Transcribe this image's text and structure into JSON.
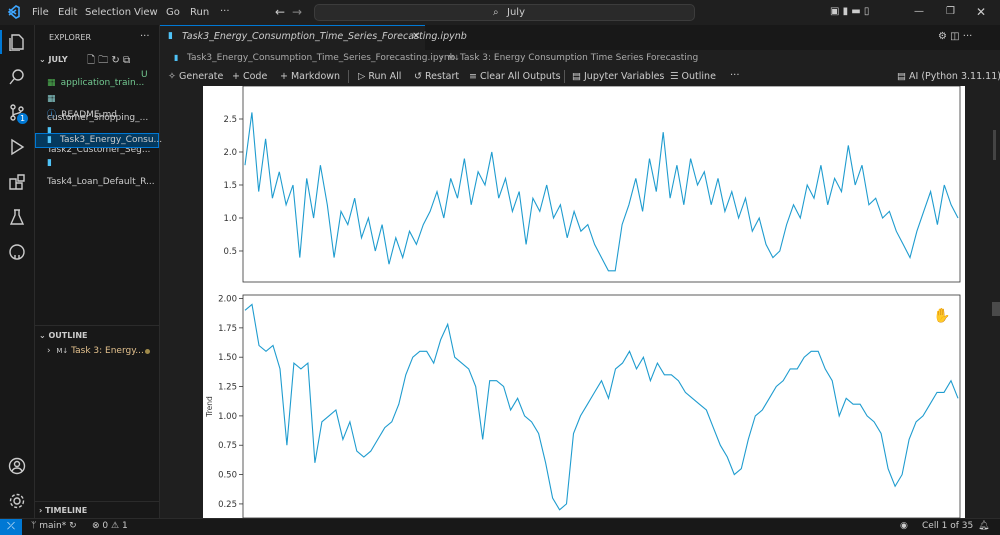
{
  "menu": [
    "File",
    "Edit",
    "Selection",
    "View",
    "Go",
    "Run",
    "···"
  ],
  "search": "July",
  "explorer": {
    "title": "EXPLORER",
    "folder": "JULY",
    "files": [
      {
        "name": "application_train...",
        "status": "U"
      },
      {
        "name": "customer_shopping_..."
      },
      {
        "name": "README.md"
      },
      {
        "name": "Task2_Customer_Seg..."
      },
      {
        "name": "Task3_Energy_Consu..."
      },
      {
        "name": "Task4_Loan_Default_R..."
      }
    ]
  },
  "source_control_badge": "1",
  "outline": {
    "title": "OUTLINE",
    "badge": "M↓",
    "item": "Task 3: Energy..."
  },
  "timeline": "TIMELINE",
  "tab": "Task3_Energy_Consumption_Time_Series_Forecasting.ipynb",
  "breadcrumb": [
    "Task3_Energy_Consumption_Time_Series_Forecasting.ipynb",
    "M↓",
    "Task 3: Energy Consumption Time Series Forecasting"
  ],
  "toolbar": [
    "Generate",
    "Code",
    "Markdown",
    "Run All",
    "Restart",
    "Clear All Outputs",
    "Jupyter Variables",
    "Outline"
  ],
  "kernel": "AI (Python 3.11.11)",
  "status": {
    "branch": "main*",
    "errors": "0",
    "warnings": "1",
    "cell": "Cell 1 of 35"
  },
  "chart_data": [
    {
      "type": "line",
      "color": "#1f9ccf",
      "values": [
        1.8,
        2.6,
        1.4,
        2.2,
        1.3,
        1.7,
        1.2,
        1.5,
        0.4,
        1.6,
        1.0,
        1.8,
        1.2,
        0.4,
        1.1,
        0.9,
        1.3,
        0.7,
        1.0,
        0.5,
        0.9,
        0.3,
        0.7,
        0.4,
        0.8,
        0.6,
        0.9,
        1.1,
        1.4,
        1.0,
        1.6,
        1.3,
        1.9,
        1.2,
        1.7,
        1.5,
        2.0,
        1.3,
        1.6,
        1.1,
        1.4,
        0.6,
        1.3,
        1.1,
        1.5,
        1.0,
        1.2,
        0.7,
        1.1,
        0.8,
        0.9,
        0.6,
        0.4,
        0.2,
        0.2,
        0.9,
        1.2,
        1.6,
        1.1,
        1.9,
        1.4,
        2.3,
        1.3,
        1.8,
        1.2,
        1.9,
        1.5,
        1.7,
        1.2,
        1.6,
        1.1,
        1.4,
        1.0,
        1.3,
        0.8,
        1.0,
        0.6,
        0.4,
        0.5,
        0.9,
        1.2,
        1.0,
        1.5,
        1.3,
        1.8,
        1.2,
        1.6,
        1.4,
        2.1,
        1.5,
        1.8,
        1.2,
        1.3,
        1.0,
        1.1,
        0.8,
        0.6,
        0.4,
        0.8,
        1.1,
        1.4,
        0.9,
        1.5,
        1.2,
        1.0
      ],
      "ylim": [
        0.03,
        3.0
      ],
      "yticks": [
        {
          "value": 0.5,
          "label": "0.5"
        },
        {
          "value": 1,
          "label": "1.0"
        },
        {
          "value": 1.5,
          "label": "1.5"
        },
        {
          "value": 2,
          "label": "2.0"
        },
        {
          "value": 2.5,
          "label": "2.5"
        }
      ]
    },
    {
      "type": "line",
      "color": "#1f9ccf",
      "ylabel": "Trend",
      "values": [
        1.9,
        1.95,
        1.6,
        1.55,
        1.6,
        1.4,
        0.75,
        1.45,
        1.4,
        1.45,
        0.6,
        0.95,
        1.0,
        1.05,
        0.8,
        0.95,
        0.7,
        0.65,
        0.7,
        0.8,
        0.9,
        0.95,
        1.1,
        1.35,
        1.5,
        1.55,
        1.55,
        1.45,
        1.65,
        1.78,
        1.5,
        1.45,
        1.4,
        1.25,
        0.8,
        1.3,
        1.3,
        1.25,
        1.05,
        1.15,
        1.0,
        0.95,
        0.85,
        0.6,
        0.3,
        0.2,
        0.25,
        0.85,
        1.0,
        1.1,
        1.2,
        1.3,
        1.15,
        1.4,
        1.45,
        1.55,
        1.4,
        1.5,
        1.3,
        1.45,
        1.35,
        1.35,
        1.3,
        1.2,
        1.15,
        1.1,
        1.05,
        0.9,
        0.75,
        0.65,
        0.5,
        0.55,
        0.8,
        1.0,
        1.05,
        1.15,
        1.25,
        1.3,
        1.4,
        1.4,
        1.5,
        1.55,
        1.55,
        1.4,
        1.3,
        1.0,
        1.15,
        1.1,
        1.1,
        1.0,
        0.95,
        0.85,
        0.55,
        0.4,
        0.5,
        0.8,
        0.95,
        1.0,
        1.1,
        1.2,
        1.2,
        1.3,
        1.15
      ],
      "ylim": [
        0.13,
        2.03
      ],
      "yticks": [
        0.25,
        {
          "value": 0.5,
          "label": "0.50"
        },
        0.75,
        {
          "value": 1,
          "label": "1.00"
        },
        1.25,
        {
          "value": 1.5,
          "label": "1.50"
        },
        1.75,
        {
          "value": 2,
          "label": "2.00"
        }
      ]
    }
  ]
}
